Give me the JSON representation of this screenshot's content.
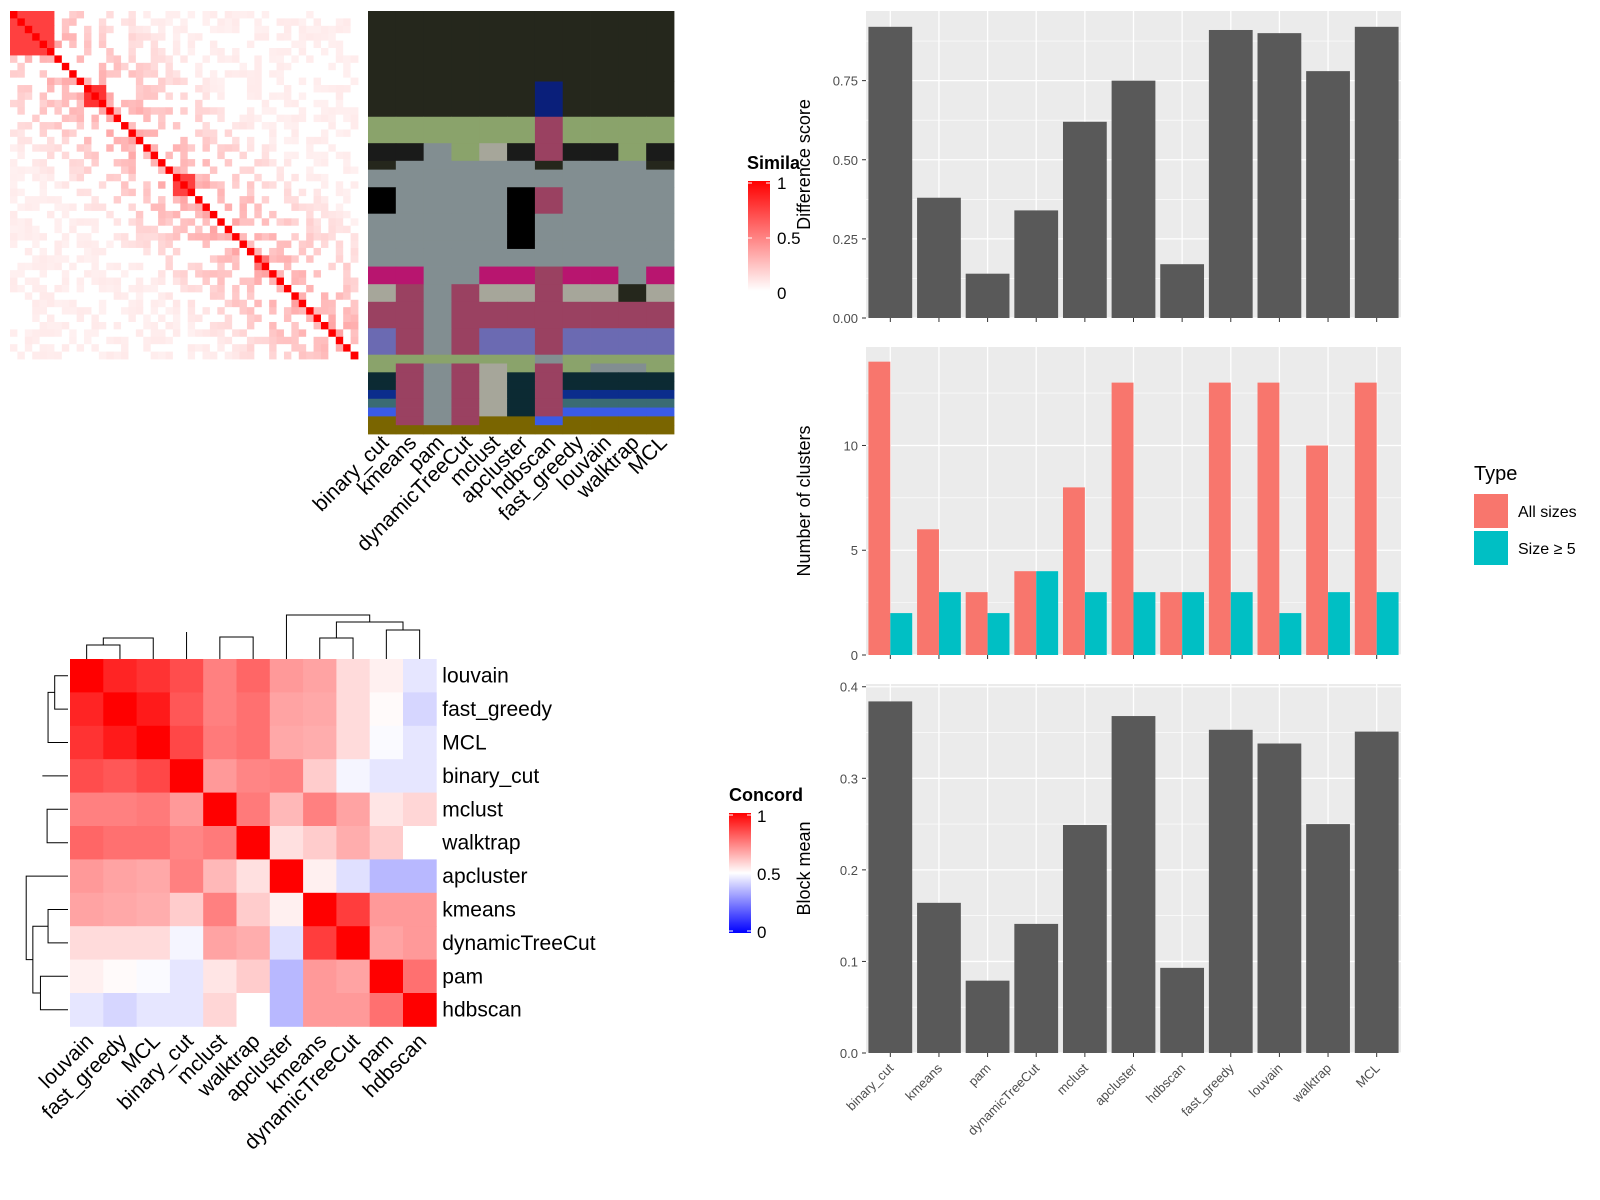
{
  "colors": {
    "panel_bg": "#ebebeb",
    "grid": "#ffffff",
    "bar_dark": "#595959",
    "all_sizes": "#f8766d",
    "size_ge5": "#00bfc4",
    "heat_high": "#ff0000",
    "heat_mid": "#ffffff",
    "heat_low": "#0000ff"
  },
  "chart_data": [
    {
      "id": "similarity-heatmap",
      "type": "heatmap",
      "legend_title": "Simila",
      "legend_ticks": [
        "1",
        "0.5",
        "0"
      ],
      "n": 47,
      "note": "cell-by-cell similarity matrix; diagonal = 1, visible off-diagonal blocks",
      "block_sizes": [
        6,
        1,
        1,
        1,
        1,
        3,
        1,
        1,
        1,
        1,
        1,
        1,
        1,
        1,
        1,
        3,
        1,
        1,
        1,
        1,
        1,
        1,
        1,
        1,
        2,
        1,
        1,
        1,
        1,
        1,
        1,
        1,
        1,
        1,
        1,
        1,
        1,
        1,
        1,
        1,
        1,
        2
      ],
      "block_values": [
        0.25,
        0.6,
        0.5,
        0.4,
        0.35,
        0.3,
        0.4,
        0.3,
        0.25,
        0.2,
        0.2,
        0.15,
        0.15,
        0.1,
        0.1,
        0.25,
        0.1,
        0.1,
        0.05,
        0.05,
        0.05,
        0.05,
        0.05,
        0.05,
        0.05,
        0.05,
        0.05,
        0.05,
        0.05,
        0.05,
        0.05,
        0.05,
        0.05,
        0.05,
        0.05,
        0.05,
        0.05,
        0.05,
        0.05,
        0.05,
        0.05,
        0.1
      ]
    },
    {
      "id": "cluster-assignment",
      "type": "heatmap",
      "columns": [
        "binary_cut",
        "kmeans",
        "pam",
        "dynamicTreeCut",
        "mclust",
        "apcluster",
        "hdbscan",
        "fast_greedy",
        "louvain",
        "walktrap",
        "MCL"
      ],
      "row_bands": [
        {
          "h": 8,
          "colors": [
            "#25271c",
            "#25271c",
            "#25271c",
            "#25271c",
            "#25271c",
            "#25271c",
            "#25271c",
            "#25271c",
            "#25271c",
            "#25271c",
            "#25271c"
          ]
        },
        {
          "h": 4,
          "colors": [
            "#25271c",
            "#25271c",
            "#25271c",
            "#25271c",
            "#25271c",
            "#25271c",
            "#0a1f7a",
            "#25271c",
            "#25271c",
            "#25271c",
            "#25271c"
          ]
        },
        {
          "h": 3,
          "colors": [
            "#8aa36b",
            "#8aa36b",
            "#8aa36b",
            "#8aa36b",
            "#8aa36b",
            "#8aa36b",
            "#9a4161",
            "#8aa36b",
            "#8aa36b",
            "#8aa36b",
            "#8aa36b"
          ]
        },
        {
          "h": 2,
          "colors": [
            "#1a1b1a",
            "#1a1b1a",
            "#828e91",
            "#8aa36b",
            "#a6a69a",
            "#1a1b1a",
            "#9a4161",
            "#1a1b1a",
            "#1a1b1a",
            "#8aa36b",
            "#1a1b1a"
          ]
        },
        {
          "h": 1,
          "colors": [
            "#25271c",
            "#828e91",
            "#828e91",
            "#828e91",
            "#828e91",
            "#828e91",
            "#25271c",
            "#828e91",
            "#828e91",
            "#828e91",
            "#25271c"
          ]
        },
        {
          "h": 2,
          "colors": [
            "#828e91",
            "#828e91",
            "#828e91",
            "#828e91",
            "#828e91",
            "#828e91",
            "#828e91",
            "#828e91",
            "#828e91",
            "#828e91",
            "#828e91"
          ]
        },
        {
          "h": 3,
          "colors": [
            "#000000",
            "#828e91",
            "#828e91",
            "#828e91",
            "#828e91",
            "#000000",
            "#9a4161",
            "#828e91",
            "#828e91",
            "#828e91",
            "#828e91"
          ]
        },
        {
          "h": 3,
          "colors": [
            "#828e91",
            "#828e91",
            "#828e91",
            "#828e91",
            "#828e91",
            "#000000",
            "#828e91",
            "#828e91",
            "#828e91",
            "#828e91",
            "#828e91"
          ]
        },
        {
          "h": 1,
          "colors": [
            "#828e91",
            "#828e91",
            "#828e91",
            "#828e91",
            "#828e91",
            "#000000",
            "#828e91",
            "#828e91",
            "#828e91",
            "#828e91",
            "#828e91"
          ]
        },
        {
          "h": 2,
          "colors": [
            "#828e91",
            "#828e91",
            "#828e91",
            "#828e91",
            "#828e91",
            "#828e91",
            "#828e91",
            "#828e91",
            "#828e91",
            "#828e91",
            "#828e91"
          ]
        },
        {
          "h": 2,
          "colors": [
            "#b8156f",
            "#b8156f",
            "#828e91",
            "#828e91",
            "#b8156f",
            "#b8156f",
            "#9a4161",
            "#b8156f",
            "#b8156f",
            "#828e91",
            "#b8156f"
          ]
        },
        {
          "h": 2,
          "colors": [
            "#a6a69a",
            "#9a4161",
            "#828e91",
            "#9a4161",
            "#a6a69a",
            "#a6a69a",
            "#9a4161",
            "#a6a69a",
            "#a6a69a",
            "#25271c",
            "#a6a69a"
          ]
        },
        {
          "h": 3,
          "colors": [
            "#9a4161",
            "#9a4161",
            "#828e91",
            "#9a4161",
            "#9a4161",
            "#9a4161",
            "#9a4161",
            "#9a4161",
            "#9a4161",
            "#9a4161",
            "#9a4161"
          ]
        },
        {
          "h": 3,
          "colors": [
            "#6b6ab2",
            "#9a4161",
            "#828e91",
            "#9a4161",
            "#6b6ab2",
            "#6b6ab2",
            "#9a4161",
            "#6b6ab2",
            "#6b6ab2",
            "#6b6ab2",
            "#6b6ab2"
          ]
        },
        {
          "h": 1,
          "colors": [
            "#8aa36b",
            "#8aa36b",
            "#8aa36b",
            "#8aa36b",
            "#8aa36b",
            "#8aa36b",
            "#828e91",
            "#8aa36b",
            "#8aa36b",
            "#8aa36b",
            "#8aa36b"
          ]
        },
        {
          "h": 1,
          "colors": [
            "#8aa36b",
            "#9a4161",
            "#828e91",
            "#9a4161",
            "#a6a69a",
            "#8aa36b",
            "#9a4161",
            "#8aa36b",
            "#828e91",
            "#828e91",
            "#8aa36b"
          ]
        },
        {
          "h": 1,
          "colors": [
            "#0c2a33",
            "#9a4161",
            "#828e91",
            "#9a4161",
            "#a6a69a",
            "#0c2a33",
            "#9a4161",
            "#0c2a33",
            "#0c2a33",
            "#0c2a33",
            "#0c2a33"
          ]
        },
        {
          "h": 1,
          "colors": [
            "#0c2a33",
            "#9a4161",
            "#828e91",
            "#9a4161",
            "#a6a69a",
            "#0c2a33",
            "#9a4161",
            "#0c2a33",
            "#0c2a33",
            "#0c2a33",
            "#0c2a33"
          ]
        },
        {
          "h": 1,
          "colors": [
            "#0b2d8c",
            "#9a4161",
            "#828e91",
            "#9a4161",
            "#a6a69a",
            "#0c2a33",
            "#9a4161",
            "#0b2d8c",
            "#0b2d8c",
            "#0b2d8c",
            "#0b2d8c"
          ]
        },
        {
          "h": 1,
          "colors": [
            "#3a6b73",
            "#9a4161",
            "#828e91",
            "#9a4161",
            "#a6a69a",
            "#0c2a33",
            "#9a4161",
            "#3a6b73",
            "#3a6b73",
            "#3a6b73",
            "#3a6b73"
          ]
        },
        {
          "h": 1,
          "colors": [
            "#3a5be6",
            "#9a4161",
            "#828e91",
            "#9a4161",
            "#a6a69a",
            "#0c2a33",
            "#9a4161",
            "#3a5be6",
            "#3a5be6",
            "#3a5be6",
            "#3a5be6"
          ]
        },
        {
          "h": 1,
          "colors": [
            "#7a6500",
            "#9a4161",
            "#828e91",
            "#9a4161",
            "#7a6500",
            "#7a6500",
            "#3a5be6",
            "#7a6500",
            "#7a6500",
            "#7a6500",
            "#7a6500"
          ]
        },
        {
          "h": 1,
          "colors": [
            "#7a6500",
            "#7a6500",
            "#7a6500",
            "#7a6500",
            "#7a6500",
            "#7a6500",
            "#7a6500",
            "#7a6500",
            "#7a6500",
            "#7a6500",
            "#7a6500"
          ]
        }
      ]
    },
    {
      "id": "difference-score",
      "type": "bar",
      "categories": [
        "binary_cut",
        "kmeans",
        "pam",
        "dynamicTreeCut",
        "mclust",
        "apcluster",
        "hdbscan",
        "fast_greedy",
        "louvain",
        "walktrap",
        "MCL"
      ],
      "values": [
        0.92,
        0.38,
        0.14,
        0.34,
        0.62,
        0.75,
        0.17,
        0.91,
        0.9,
        0.78,
        0.92
      ],
      "ylabel": "Difference score",
      "ylim": [
        0,
        0.97
      ],
      "yticks": [
        "0.00",
        "0.25",
        "0.50",
        "0.75"
      ],
      "ytick_values": [
        0,
        0.25,
        0.5,
        0.75
      ]
    },
    {
      "id": "number-of-clusters",
      "type": "bar",
      "categories": [
        "binary_cut",
        "kmeans",
        "pam",
        "dynamicTreeCut",
        "mclust",
        "apcluster",
        "hdbscan",
        "fast_greedy",
        "louvain",
        "walktrap",
        "MCL"
      ],
      "series": [
        {
          "name": "All sizes",
          "values": [
            14,
            6,
            3,
            4,
            8,
            13,
            3,
            13,
            13,
            10,
            13
          ]
        },
        {
          "name": "Size ≥ 5",
          "values": [
            2,
            3,
            2,
            4,
            3,
            3,
            3,
            3,
            2,
            3,
            3
          ]
        }
      ],
      "ylabel": "Number of clusters",
      "ylim": [
        0,
        14.7
      ],
      "yticks": [
        "0",
        "5",
        "10"
      ],
      "ytick_values": [
        0,
        5,
        10
      ],
      "legend_title": "Type",
      "legend_position": "right"
    },
    {
      "id": "block-mean",
      "type": "bar",
      "categories": [
        "binary_cut",
        "kmeans",
        "pam",
        "dynamicTreeCut",
        "mclust",
        "apcluster",
        "hdbscan",
        "fast_greedy",
        "louvain",
        "walktrap",
        "MCL"
      ],
      "values": [
        0.384,
        0.164,
        0.079,
        0.141,
        0.249,
        0.368,
        0.093,
        0.353,
        0.338,
        0.25,
        0.351
      ],
      "ylabel": "Block mean",
      "ylim": [
        0,
        0.403
      ],
      "yticks": [
        "0.0",
        "0.1",
        "0.2",
        "0.3",
        "0.4"
      ],
      "ytick_values": [
        0,
        0.1,
        0.2,
        0.3,
        0.4
      ]
    },
    {
      "id": "concordance-heatmap",
      "type": "heatmap",
      "rows": [
        "louvain",
        "fast_greedy",
        "MCL",
        "binary_cut",
        "mclust",
        "walktrap",
        "apcluster",
        "kmeans",
        "dynamicTreeCut",
        "pam",
        "hdbscan"
      ],
      "columns": [
        "louvain",
        "fast_greedy",
        "MCL",
        "binary_cut",
        "mclust",
        "walktrap",
        "apcluster",
        "kmeans",
        "dynamicTreeCut",
        "pam",
        "hdbscan"
      ],
      "values": [
        [
          1.0,
          0.93,
          0.9,
          0.85,
          0.75,
          0.8,
          0.7,
          0.68,
          0.57,
          0.53,
          0.45
        ],
        [
          0.93,
          1.0,
          0.95,
          0.83,
          0.75,
          0.78,
          0.68,
          0.67,
          0.57,
          0.51,
          0.42
        ],
        [
          0.9,
          0.95,
          1.0,
          0.86,
          0.76,
          0.78,
          0.67,
          0.66,
          0.57,
          0.49,
          0.45
        ],
        [
          0.85,
          0.83,
          0.86,
          1.0,
          0.7,
          0.74,
          0.75,
          0.6,
          0.48,
          0.45,
          0.45
        ],
        [
          0.75,
          0.75,
          0.76,
          0.7,
          1.0,
          0.76,
          0.64,
          0.75,
          0.68,
          0.55,
          0.58
        ],
        [
          0.8,
          0.78,
          0.78,
          0.74,
          0.76,
          1.0,
          0.56,
          0.6,
          0.66,
          0.6,
          0.5
        ],
        [
          0.7,
          0.68,
          0.67,
          0.75,
          0.64,
          0.56,
          1.0,
          0.53,
          0.44,
          0.36,
          0.36
        ],
        [
          0.68,
          0.67,
          0.66,
          0.6,
          0.75,
          0.6,
          0.53,
          1.0,
          0.88,
          0.7,
          0.7
        ],
        [
          0.57,
          0.57,
          0.57,
          0.48,
          0.68,
          0.66,
          0.44,
          0.88,
          1.0,
          0.68,
          0.7
        ],
        [
          0.53,
          0.51,
          0.49,
          0.45,
          0.55,
          0.6,
          0.36,
          0.7,
          0.68,
          1.0,
          0.78
        ],
        [
          0.45,
          0.42,
          0.45,
          0.45,
          0.58,
          0.5,
          0.36,
          0.7,
          0.7,
          0.78,
          1.0
        ]
      ],
      "legend_title": "Concord",
      "legend_ticks": [
        "1",
        "0.5",
        "0"
      ]
    }
  ]
}
